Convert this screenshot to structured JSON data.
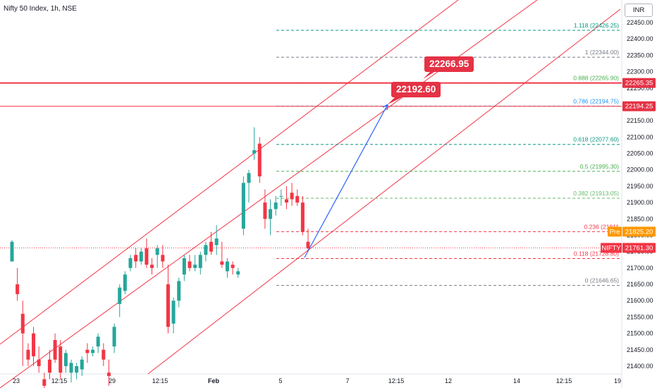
{
  "header": {
    "symbol_title": "Nifty 50 Index, 1h, NSE",
    "currency": "INR"
  },
  "colors": {
    "up": "#26a69a",
    "down": "#f23645",
    "channel": "#f23645",
    "arrow": "#2962ff",
    "label_bg": "#e53245",
    "pre": "#ff9800"
  },
  "annotations": {
    "target_high": "22266.95",
    "target_low": "22192.60"
  },
  "price_tags": {
    "upper_line": "22265.35",
    "lower_line": "22194.25",
    "pre_tag": "Pre",
    "pre_value": "21825.20",
    "symbol_tag": "NIFTY",
    "last_price": "21761.30"
  },
  "chart_data": {
    "type": "candlestick",
    "ylim": [
      21370,
      22470
    ],
    "y_ticks": [
      21400,
      21450,
      21500,
      21550,
      21600,
      21650,
      21700,
      21750,
      21800,
      21850,
      21900,
      21950,
      22000,
      22050,
      22100,
      22150,
      22200,
      22250,
      22300,
      22350,
      22400,
      22450
    ],
    "x_ticks": [
      "23",
      "12:15",
      "29",
      "12:15",
      "Feb",
      "5",
      "7",
      "12:15",
      "12",
      "14",
      "12:15",
      "19"
    ],
    "fib_levels": [
      {
        "label": "1.118 (22426.25)",
        "value": 22426.25,
        "color": "#089981"
      },
      {
        "label": "1 (22344.00)",
        "value": 22344.0,
        "color": "#787b86"
      },
      {
        "label": "0.888 (22265.90)",
        "value": 22265.9,
        "color": "#4caf50"
      },
      {
        "label": "0.786 (22194.75)",
        "value": 22194.75,
        "color": "#2196f3"
      },
      {
        "label": "0.618 (22077.60)",
        "value": 22077.6,
        "color": "#089981"
      },
      {
        "label": "0.5 (21995.30)",
        "value": 21995.3,
        "color": "#4caf50"
      },
      {
        "label": "0.382 (21913.05)",
        "value": 21913.05,
        "color": "#66bb6a"
      },
      {
        "label": "0.236 (21811",
        "value": 21811.0,
        "color": "#f23645"
      },
      {
        "label": "0.118 (21728.80)",
        "value": 21728.8,
        "color": "#f23645"
      },
      {
        "label": "0 (21646.65)",
        "value": 21646.65,
        "color": "#787b86"
      }
    ],
    "horizontal_lines": [
      22265.35,
      22194.25
    ],
    "last_price": 21761.3,
    "candles": [
      [
        21720,
        21785,
        21720,
        21780
      ],
      [
        21650,
        21700,
        21600,
        21620
      ],
      [
        21560,
        21600,
        21400,
        21500
      ],
      [
        21450,
        21470,
        21400,
        21420
      ],
      [
        21500,
        21520,
        21400,
        21430
      ],
      [
        21420,
        21460,
        21380,
        21400
      ],
      [
        21360,
        21380,
        21320,
        21340
      ],
      [
        21420,
        21450,
        21360,
        21380
      ],
      [
        21480,
        21500,
        21410,
        21420
      ],
      [
        21460,
        21480,
        21360,
        21380
      ],
      [
        21400,
        21450,
        21380,
        21440
      ],
      [
        21380,
        21420,
        21350,
        21410
      ],
      [
        21380,
        21410,
        21360,
        21400
      ],
      [
        21390,
        21430,
        21370,
        21420
      ],
      [
        21450,
        21470,
        21410,
        21440
      ],
      [
        21440,
        21460,
        21430,
        21450
      ],
      [
        21460,
        21500,
        21440,
        21490
      ],
      [
        21450,
        21470,
        21400,
        21420
      ],
      [
        21380,
        21420,
        21340,
        21370
      ],
      [
        21460,
        21530,
        21440,
        21520
      ],
      [
        21590,
        21650,
        21550,
        21640
      ],
      [
        21630,
        21690,
        21620,
        21680
      ],
      [
        21700,
        21740,
        21690,
        21730
      ],
      [
        21740,
        21760,
        21700,
        21720
      ],
      [
        21720,
        21760,
        21710,
        21750
      ],
      [
        21760,
        21790,
        21700,
        21710
      ],
      [
        21710,
        21730,
        21680,
        21700
      ],
      [
        21740,
        21770,
        21700,
        21760
      ],
      [
        21740,
        21770,
        21700,
        21720
      ],
      [
        21650,
        21710,
        21500,
        21520
      ],
      [
        21530,
        21610,
        21500,
        21600
      ],
      [
        21600,
        21670,
        21580,
        21660
      ],
      [
        21680,
        21740,
        21660,
        21730
      ],
      [
        21720,
        21740,
        21690,
        21700
      ],
      [
        21700,
        21740,
        21690,
        21710
      ],
      [
        21700,
        21750,
        21680,
        21740
      ],
      [
        21740,
        21780,
        21720,
        21770
      ],
      [
        21780,
        21810,
        21740,
        21750
      ],
      [
        21770,
        21830,
        21740,
        21790
      ],
      [
        21720,
        21780,
        21700,
        21710
      ],
      [
        21690,
        21730,
        21670,
        21720
      ],
      [
        21710,
        21720,
        21680,
        21700
      ],
      [
        21680,
        21700,
        21670,
        21690
      ],
      [
        21820,
        21980,
        21800,
        21960
      ],
      [
        21960,
        22000,
        21900,
        21990
      ],
      [
        22050,
        22130,
        22030,
        22060
      ],
      [
        22080,
        22100,
        21960,
        21980
      ],
      [
        21900,
        21940,
        21820,
        21850
      ],
      [
        21850,
        21910,
        21800,
        21880
      ],
      [
        21880,
        21920,
        21860,
        21900
      ],
      [
        21920,
        21940,
        21890,
        21920
      ],
      [
        21910,
        21950,
        21880,
        21900
      ],
      [
        21930,
        21960,
        21890,
        21910
      ],
      [
        21920,
        21940,
        21890,
        21900
      ],
      [
        21900,
        21920,
        21800,
        21810
      ],
      [
        21780,
        21820,
        21750,
        21760
      ]
    ]
  }
}
